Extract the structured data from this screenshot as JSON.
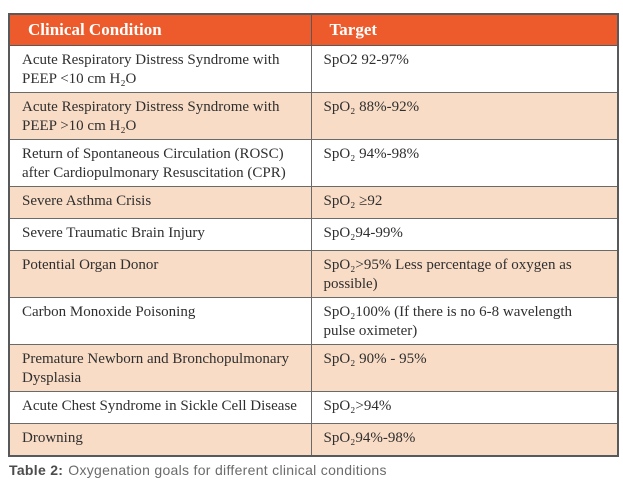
{
  "table": {
    "headers": {
      "condition": "Clinical Condition",
      "target": "Target"
    },
    "rows": [
      {
        "condition": "Acute Respiratory Distress Syndrome with PEEP <10 cm H₂O",
        "target": "SpO2 92-97%"
      },
      {
        "condition": "Acute Respiratory Distress Syndrome with PEEP >10 cm H₂O",
        "target": "SpO₂ 88%-92%"
      },
      {
        "condition": "Return of Spontaneous Circulation (ROSC) after Cardiopulmonary Resuscitation (CPR)",
        "target": "SpO₂ 94%-98%"
      },
      {
        "condition": "Severe Asthma Crisis",
        "target": "SpO₂ ≥92"
      },
      {
        "condition": "Severe Traumatic Brain Injury",
        "target": "SpO₂94-99%"
      },
      {
        "condition": "Potential Organ Donor",
        "target": "SpO₂>95% Less percentage of oxygen as possible)"
      },
      {
        "condition": "Carbon Monoxide Poisoning",
        "target": "SpO₂100% (If there is no 6-8 wavelength pulse oximeter)"
      },
      {
        "condition": "Premature Newborn and Bronchopulmonary Dysplasia",
        "target": "SpO₂ 90% - 95%"
      },
      {
        "condition": "Acute Chest Syndrome in Sickle Cell Disease",
        "target": "SpO₂>94%"
      },
      {
        "condition": "Drowning",
        "target": "SpO₂94%-98%"
      }
    ]
  },
  "caption": {
    "label": "Table 2:",
    "text": "Oxygenation goals for different clinical conditions"
  },
  "colors": {
    "header_bg": "#ED5A2B",
    "header_text": "#FFFFFF",
    "row_alt_bg": "#F9DCC6",
    "body_text": "#2F2F2F",
    "border_outer": "#58595B",
    "border_inner": "#6A6A6A",
    "caption_label": "#4C4C4C",
    "caption_text": "#6B6B6B"
  }
}
